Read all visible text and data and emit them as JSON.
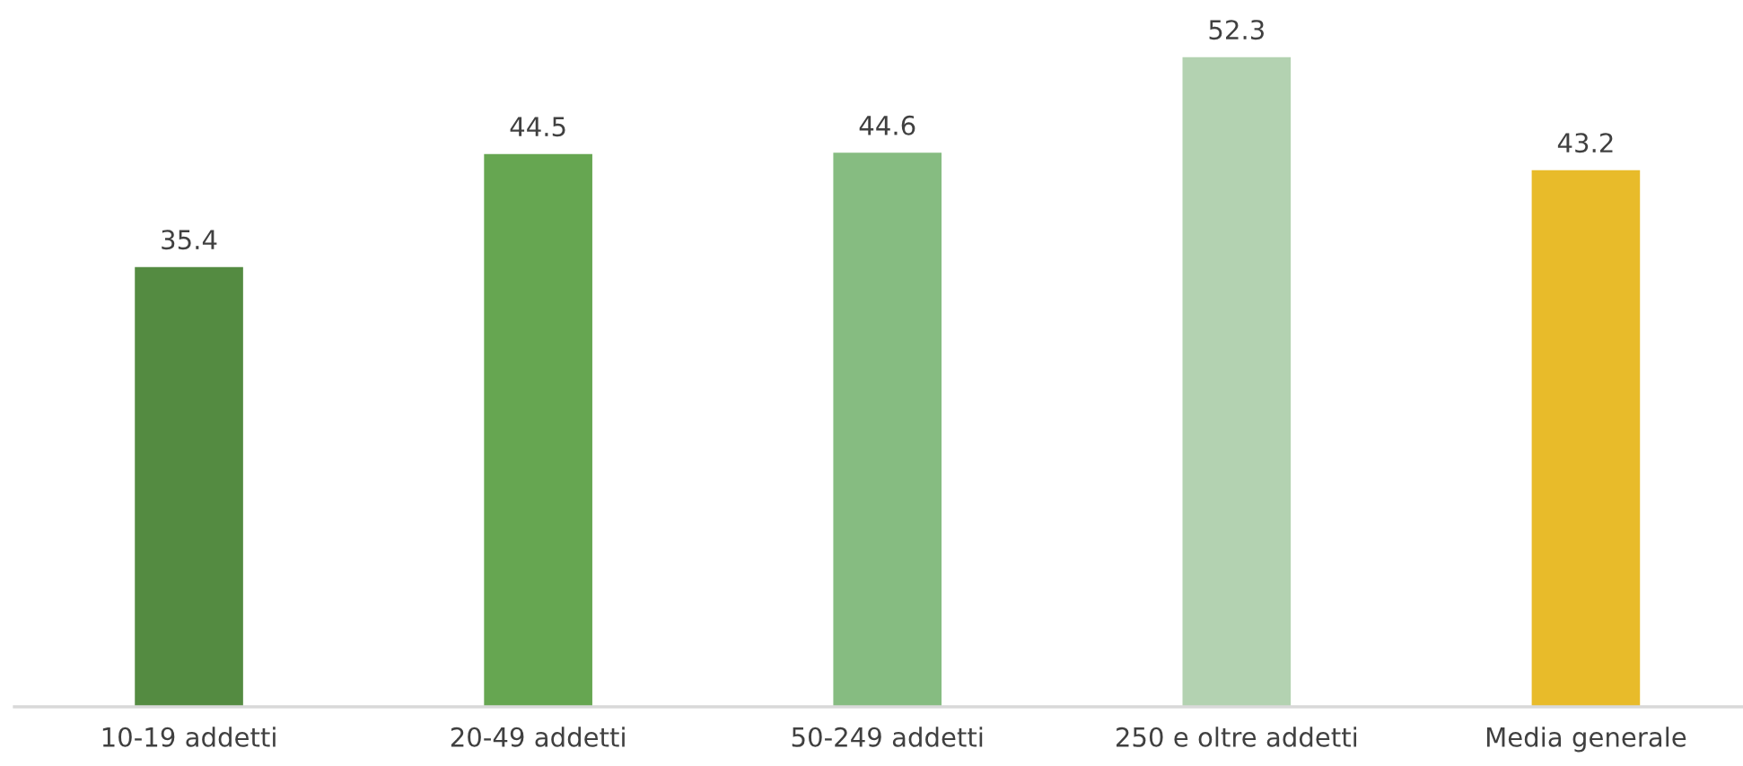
{
  "chart_data": {
    "type": "bar",
    "categories": [
      "10-19 addetti",
      "20-49 addetti",
      "50-249 addetti",
      "250 e oltre addetti",
      "Media generale"
    ],
    "values": [
      35.4,
      44.5,
      44.6,
      52.3,
      43.2
    ],
    "colors": [
      "#548b41",
      "#66a651",
      "#86bc81",
      "#b3d2b1",
      "#e8bb2a"
    ],
    "data_labels": true
  }
}
